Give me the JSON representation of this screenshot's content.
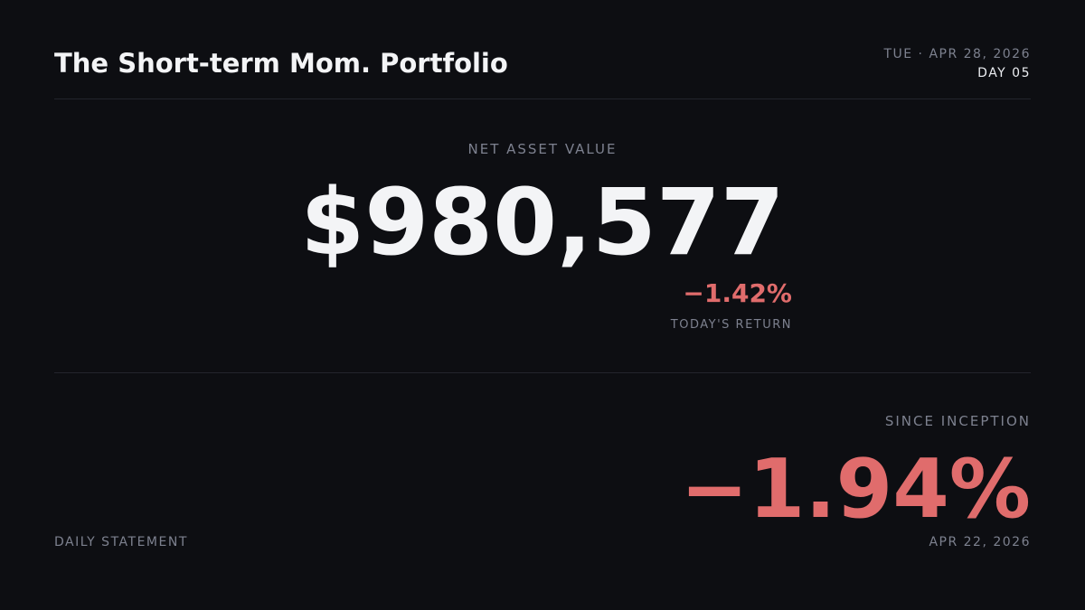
{
  "header": {
    "title": "The Short-term Mom. Portfolio",
    "date": "TUE · APR 28, 2026",
    "day": "DAY 05"
  },
  "nav": {
    "label": "NET ASSET VALUE",
    "value": "$980,577",
    "daily_return": "−1.42%",
    "daily_return_label": "TODAY'S RETURN"
  },
  "inception": {
    "label": "SINCE INCEPTION",
    "value": "−1.94%",
    "date": "APR 22, 2026"
  },
  "footer": {
    "label": "DAILY STATEMENT"
  }
}
